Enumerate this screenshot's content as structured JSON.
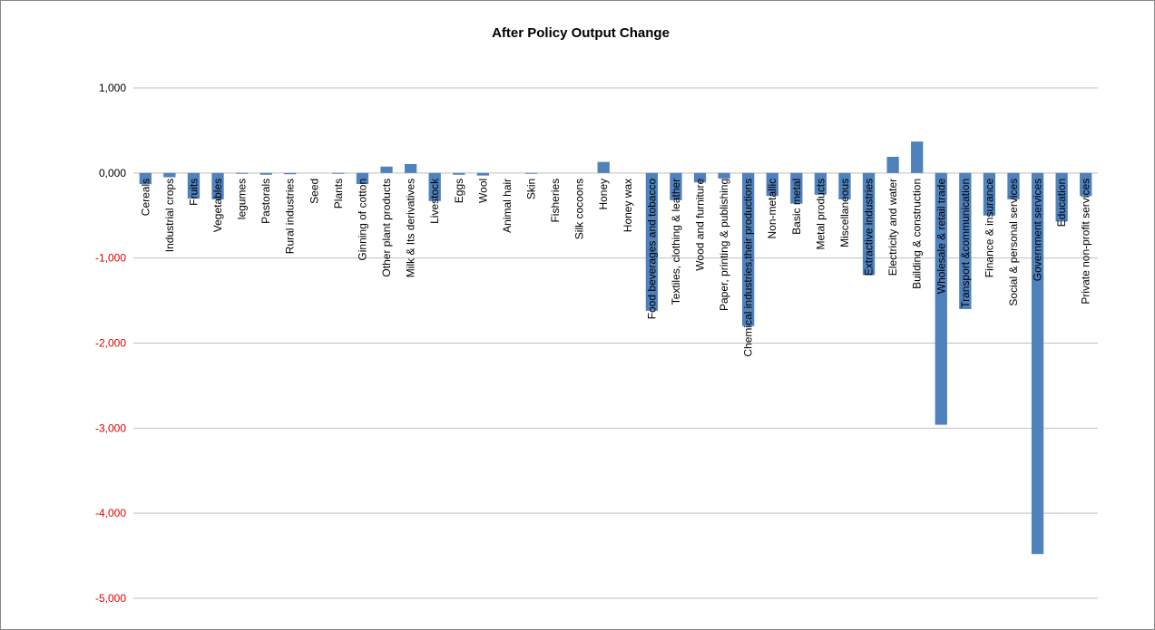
{
  "chart_data": {
    "type": "bar",
    "title": "After Policy Output Change",
    "categories": [
      "Cereals",
      "Industrial crops",
      "Fruits",
      "Vegetables",
      "legumes",
      "Pastorals",
      "Rural industries",
      "Seed",
      "Plants",
      "Ginning of cotton",
      "Other plant products",
      "Milk & Its derivatives",
      "Livestock",
      "Eggs",
      "Wool",
      "Animal hair",
      "Skin",
      "Fisheries",
      "Silk cocoons",
      "Honey",
      "Honey wax",
      "Food beverages and tobacco",
      "Textiles, clothing & leather",
      "Wood and furniture",
      "Paper, printing & publishing",
      "Chemical industries,their productions",
      "Non-metallic",
      "Basic metal",
      "Metal products",
      "Miscellaneous",
      "Extractive industries",
      "Electricity and water",
      "Building & construction",
      "Wholesale & retail trade",
      "Transport &communication",
      "Finance & insurance",
      "Social & personal services",
      "Government services",
      "Education",
      "Private non-profit services"
    ],
    "values": [
      -130,
      -50,
      -300,
      -310,
      -10,
      -20,
      -15,
      0,
      -10,
      -130,
      75,
      105,
      -330,
      -20,
      -30,
      0,
      -10,
      0,
      0,
      130,
      0,
      -1620,
      -320,
      -110,
      -65,
      -1800,
      -270,
      -360,
      -255,
      -310,
      -1200,
      190,
      370,
      -2960,
      -1600,
      -500,
      -310,
      -4480,
      -570,
      -270
    ],
    "color": "#4f81bd",
    "negative_tick_color": "#e00000",
    "ylim": [
      -5000,
      1000
    ],
    "yticks": [
      {
        "value": -5000,
        "label": "-5,000"
      },
      {
        "value": -4000,
        "label": "-4,000"
      },
      {
        "value": -3000,
        "label": "-3,000"
      },
      {
        "value": -2000,
        "label": "-2,000"
      },
      {
        "value": -1000,
        "label": "-1,000"
      },
      {
        "value": 0,
        "label": "0,000"
      },
      {
        "value": 1000,
        "label": "1,000"
      }
    ],
    "grid": true
  }
}
